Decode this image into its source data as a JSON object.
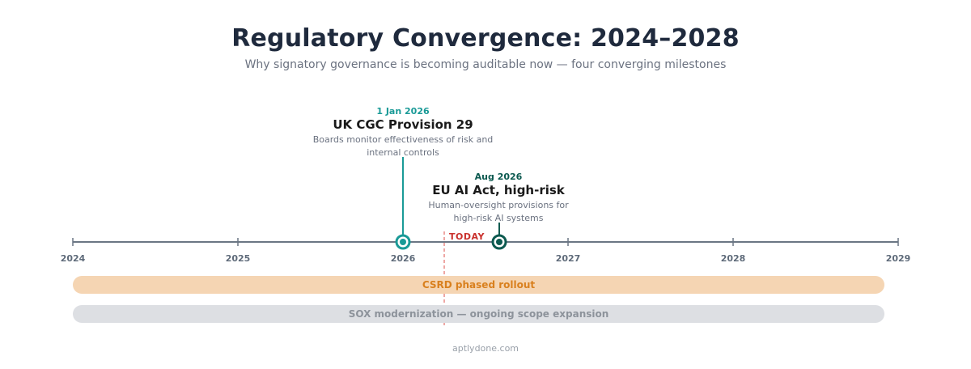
{
  "title": "Regulatory Convergence: 2024–2028",
  "subtitle": "Why signatory governance is becoming auditable now — four converging milestones",
  "axis": {
    "ticks": [
      "2024",
      "2025",
      "2026",
      "2027",
      "2028",
      "2029"
    ],
    "today_label": "TODAY"
  },
  "milestones": [
    {
      "date": "1 Jan 2026",
      "name": "UK CGC Provision 29",
      "description_lines": [
        "Boards monitor effectiveness of risk and",
        "internal controls"
      ],
      "color": "#1a9a97"
    },
    {
      "date": "Aug 2026",
      "name": "EU AI Act, high-risk",
      "description_lines": [
        "Human-oversight provisions for",
        "high-risk AI systems"
      ],
      "color": "#0c5a50"
    }
  ],
  "bands": [
    {
      "label": "CSRD phased rollout",
      "color": "#f5d5b3",
      "text_color": "#d9801e"
    },
    {
      "label": "SOX modernization — ongoing scope expansion",
      "color": "#dddfe3",
      "text_color": "#8d939b"
    }
  ],
  "colors": {
    "axis": "#6b7684",
    "today": "#e98a86"
  },
  "footer": "aptlydone.com"
}
